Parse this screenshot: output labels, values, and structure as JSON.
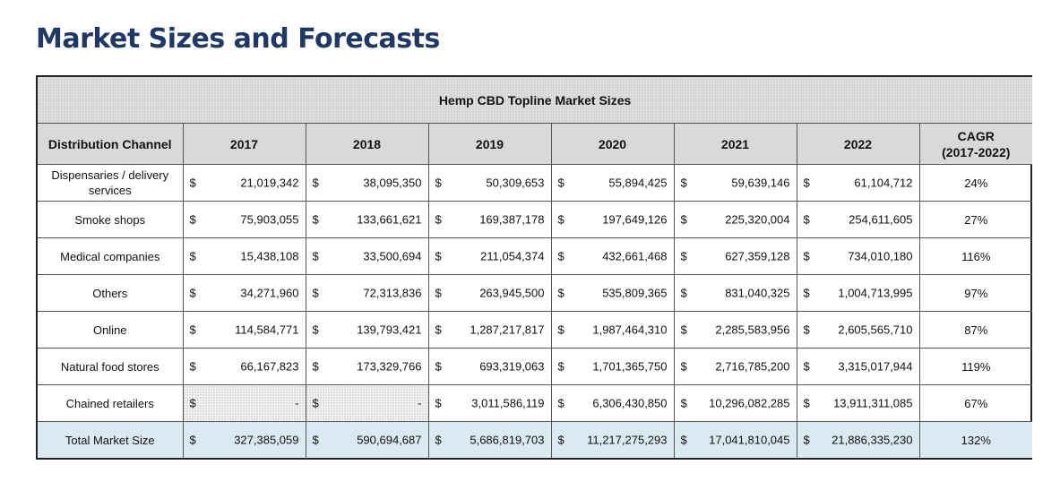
{
  "page": {
    "title": "Market Sizes and Forecasts"
  },
  "table": {
    "caption": "Hemp CBD Topline Market Sizes",
    "headers": {
      "channel": "Distribution Channel",
      "years": [
        "2017",
        "2018",
        "2019",
        "2020",
        "2021",
        "2022"
      ],
      "cagr_line1": "CAGR",
      "cagr_line2": "(2017-2022)"
    },
    "currency_symbol": "$",
    "rows": [
      {
        "channel_line1": "Dispensaries / delivery",
        "channel_line2": "services",
        "values": [
          "21,019,342",
          "38,095,350",
          "50,309,653",
          "55,894,425",
          "59,639,146",
          "61,104,712"
        ],
        "cagr": "24%"
      },
      {
        "channel_line1": "Smoke shops",
        "channel_line2": "",
        "values": [
          "75,903,055",
          "133,661,621",
          "169,387,178",
          "197,649,126",
          "225,320,004",
          "254,611,605"
        ],
        "cagr": "27%"
      },
      {
        "channel_line1": "Medical companies",
        "channel_line2": "",
        "values": [
          "15,438,108",
          "33,500,694",
          "211,054,374",
          "432,661,468",
          "627,359,128",
          "734,010,180"
        ],
        "cagr": "116%"
      },
      {
        "channel_line1": "Others",
        "channel_line2": "",
        "values": [
          "34,271,960",
          "72,313,836",
          "263,945,500",
          "535,809,365",
          "831,040,325",
          "1,004,713,995"
        ],
        "cagr": "97%"
      },
      {
        "channel_line1": "Online",
        "channel_line2": "",
        "values": [
          "114,584,771",
          "139,793,421",
          "1,287,217,817",
          "1,987,464,310",
          "2,285,583,956",
          "2,605,565,710"
        ],
        "cagr": "87%"
      },
      {
        "channel_line1": "Natural food stores",
        "channel_line2": "",
        "values": [
          "66,167,823",
          "173,329,766",
          "693,319,063",
          "1,701,365,750",
          "2,716,785,200",
          "3,315,017,944"
        ],
        "cagr": "119%"
      },
      {
        "channel_line1": "Chained retailers",
        "channel_line2": "",
        "values": [
          "-",
          "-",
          "3,011,586,119",
          "6,306,430,850",
          "10,296,082,285",
          "13,911,311,085"
        ],
        "cagr": "67%"
      }
    ],
    "total": {
      "label": "Total Market Size",
      "values": [
        "327,385,059",
        "590,694,687",
        "5,686,819,703",
        "11,217,275,293",
        "17,041,810,045",
        "21,886,335,230"
      ],
      "cagr": "132%"
    }
  },
  "colors": {
    "title": "#1f3864",
    "caption_bg": "#cfcfcf",
    "header_bg": "#d9d9d9",
    "total_bg": "#d9eaf3"
  }
}
